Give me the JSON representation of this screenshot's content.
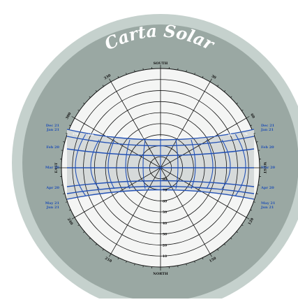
{
  "title": "Carta Solar",
  "colors": {
    "outer_ring": "#c5d1cd",
    "disc": "#9aa8a3",
    "chart_face": "#f4f5f4",
    "sun_band": "#d6dada",
    "sun_path": "#2452b5",
    "grid": "#111111",
    "date_text": "#1f4fb5"
  },
  "directions": {
    "north": "NORTH",
    "south": "SOUTH",
    "east": "EAST",
    "west": "WEST"
  },
  "azimuth_labels": [
    "330",
    "300",
    "240",
    "210",
    "150",
    "120",
    "60",
    "30"
  ],
  "altitude_labels": [
    "80",
    "70",
    "60",
    "50",
    "40",
    "30",
    "20",
    "10"
  ],
  "date_labels_left": [
    "Dec 21",
    "Jan 21",
    "Feb 20",
    "Mar 20",
    "Apr 20",
    "May 21",
    "Jun 21"
  ],
  "date_labels_right": [
    "Dec 21",
    "Jan 21",
    "Feb 20",
    "Mar 20",
    "Apr 20",
    "May 21",
    "Jun 21"
  ],
  "hour_labels": [
    "17h",
    "16h",
    "15h",
    "14h",
    "13h",
    "12h",
    "11h",
    "10h",
    "9h",
    "8h",
    "7h"
  ]
}
